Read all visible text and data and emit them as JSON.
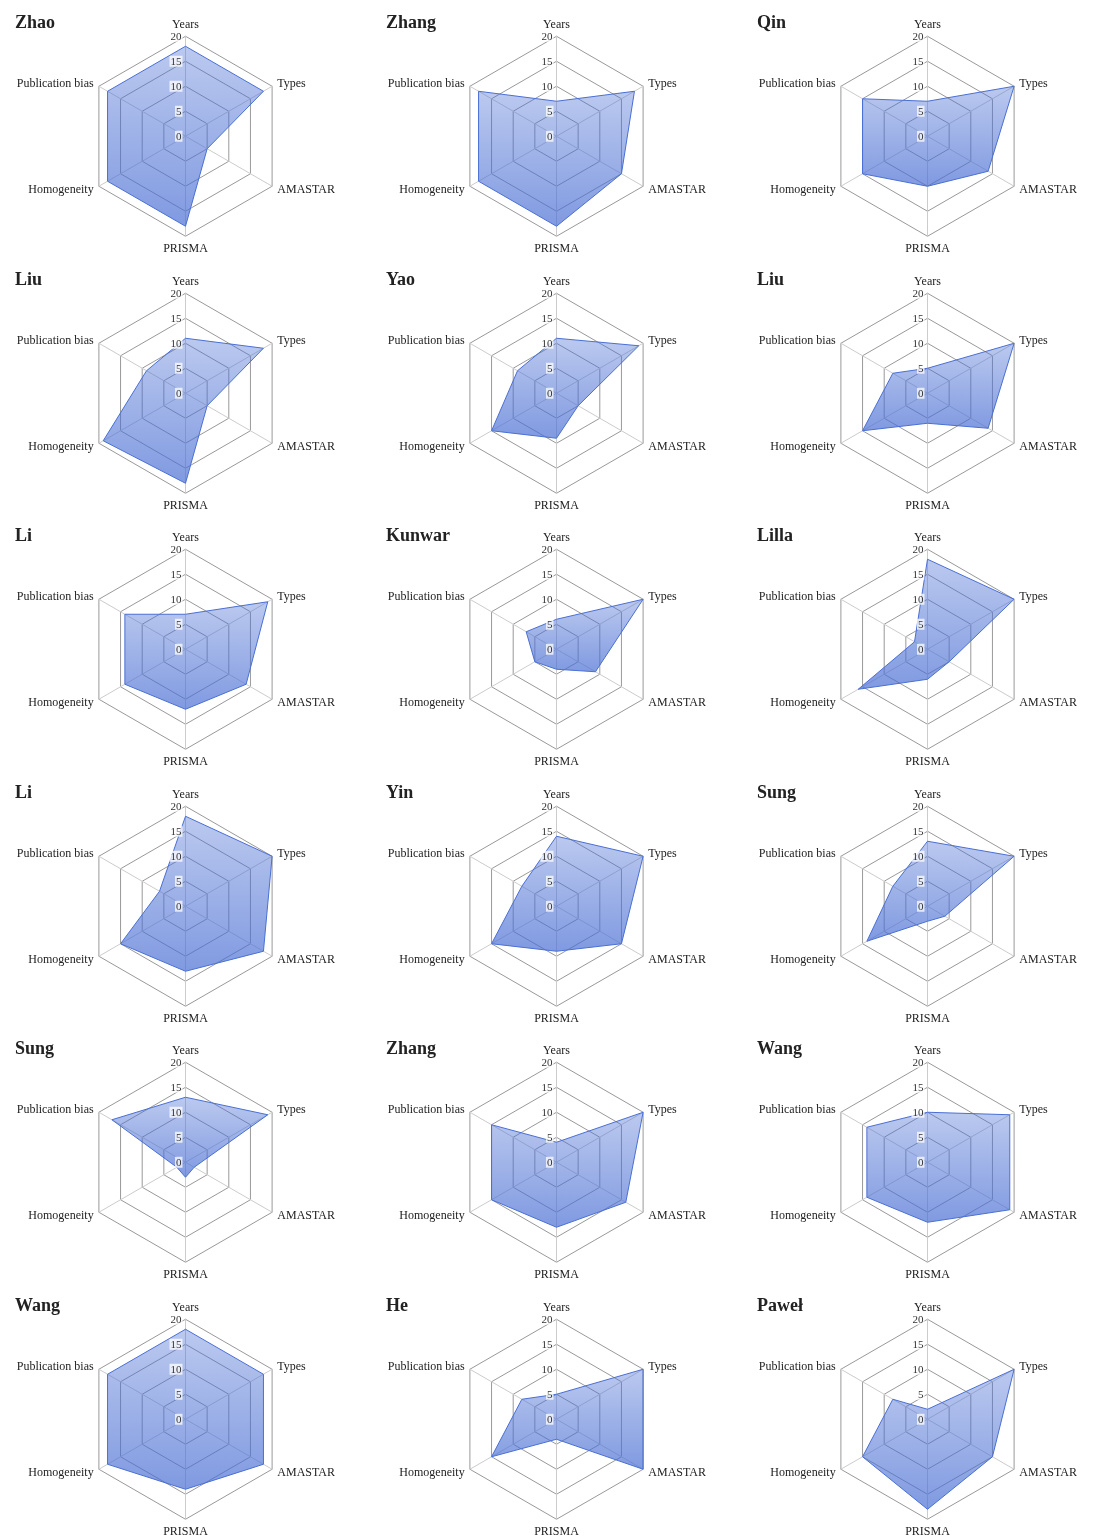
{
  "chart_data": [
    {
      "type": "radar",
      "title": "Zhao",
      "categories": [
        "Years",
        "Types",
        "AMASTAR",
        "PRISMA",
        "Homogeneity",
        "Publication bias"
      ],
      "series": [
        {
          "color": "#4a6fd4",
          "values": [
            18,
            18,
            5,
            18,
            18,
            18
          ]
        }
      ],
      "ylim": [
        0,
        20
      ],
      "yticks": [
        0,
        5,
        10,
        15,
        20
      ],
      "grid": true
    },
    {
      "type": "radar",
      "title": "Zhang",
      "categories": [
        "Years",
        "Types",
        "AMASTAR",
        "PRISMA",
        "Homogeneity",
        "Publication bias"
      ],
      "series": [
        {
          "color": "#4a6fd4",
          "values": [
            7,
            18,
            15,
            18,
            18,
            18
          ]
        }
      ],
      "ylim": [
        0,
        20
      ],
      "yticks": [
        0,
        5,
        10,
        15,
        20
      ],
      "grid": true
    },
    {
      "type": "radar",
      "title": "Qin",
      "categories": [
        "Years",
        "Types",
        "AMASTAR",
        "PRISMA",
        "Homogeneity",
        "Publication bias"
      ],
      "series": [
        {
          "color": "#4a6fd4",
          "values": [
            7,
            20,
            14,
            10,
            15,
            15
          ]
        }
      ],
      "ylim": [
        0,
        20
      ],
      "yticks": [
        0,
        5,
        10,
        15,
        20
      ],
      "grid": true
    },
    {
      "type": "radar",
      "title": "Liu",
      "categories": [
        "Years",
        "Types",
        "AMASTAR",
        "PRISMA",
        "Homogeneity",
        "Publication bias"
      ],
      "series": [
        {
          "color": "#4a6fd4",
          "values": [
            11,
            18,
            5,
            18,
            19,
            9
          ]
        }
      ],
      "ylim": [
        0,
        20
      ],
      "yticks": [
        0,
        5,
        10,
        15,
        20
      ],
      "grid": true
    },
    {
      "type": "radar",
      "title": "Yao",
      "categories": [
        "Years",
        "Types",
        "AMASTAR",
        "PRISMA",
        "Homogeneity",
        "Publication bias"
      ],
      "series": [
        {
          "color": "#4a6fd4",
          "values": [
            11,
            19,
            5,
            9,
            15,
            9
          ]
        }
      ],
      "ylim": [
        0,
        20
      ],
      "yticks": [
        0,
        5,
        10,
        15,
        20
      ],
      "grid": true
    },
    {
      "type": "radar",
      "title": "Liu",
      "categories": [
        "Years",
        "Types",
        "AMASTAR",
        "PRISMA",
        "Homogeneity",
        "Publication bias"
      ],
      "series": [
        {
          "color": "#4a6fd4",
          "values": [
            5,
            20,
            14,
            6,
            15,
            8
          ]
        }
      ],
      "ylim": [
        0,
        20
      ],
      "yticks": [
        0,
        5,
        10,
        15,
        20
      ],
      "grid": true
    },
    {
      "type": "radar",
      "title": "Li",
      "categories": [
        "Years",
        "Types",
        "AMASTAR",
        "PRISMA",
        "Homogeneity",
        "Publication bias"
      ],
      "series": [
        {
          "color": "#4a6fd4",
          "values": [
            7,
            19,
            14,
            12,
            14,
            14
          ]
        }
      ],
      "ylim": [
        0,
        20
      ],
      "yticks": [
        0,
        5,
        10,
        15,
        20
      ],
      "grid": true
    },
    {
      "type": "radar",
      "title": "Kunwar",
      "categories": [
        "Years",
        "Types",
        "AMASTAR",
        "PRISMA",
        "Homogeneity",
        "Publication bias"
      ],
      "series": [
        {
          "color": "#4a6fd4",
          "values": [
            6,
            20,
            9,
            4,
            5,
            7
          ]
        }
      ],
      "ylim": [
        0,
        20
      ],
      "yticks": [
        0,
        5,
        10,
        15,
        20
      ],
      "grid": true
    },
    {
      "type": "radar",
      "title": "Lilla",
      "categories": [
        "Years",
        "Types",
        "AMASTAR",
        "PRISMA",
        "Homogeneity",
        "Publication bias"
      ],
      "series": [
        {
          "color": "#4a6fd4",
          "values": [
            18,
            20,
            5,
            6,
            16,
            3
          ]
        }
      ],
      "ylim": [
        0,
        20
      ],
      "yticks": [
        0,
        5,
        10,
        15,
        20
      ],
      "grid": true
    },
    {
      "type": "radar",
      "title": "Li",
      "categories": [
        "Years",
        "Types",
        "AMASTAR",
        "PRISMA",
        "Homogeneity",
        "Publication bias"
      ],
      "series": [
        {
          "color": "#4a6fd4",
          "values": [
            18,
            20,
            18,
            13,
            15,
            6
          ]
        }
      ],
      "ylim": [
        0,
        20
      ],
      "yticks": [
        0,
        5,
        10,
        15,
        20
      ],
      "grid": true
    },
    {
      "type": "radar",
      "title": "Yin",
      "categories": [
        "Years",
        "Types",
        "AMASTAR",
        "PRISMA",
        "Homogeneity",
        "Publication bias"
      ],
      "series": [
        {
          "color": "#4a6fd4",
          "values": [
            14,
            20,
            15,
            9,
            15,
            8
          ]
        }
      ],
      "ylim": [
        0,
        20
      ],
      "yticks": [
        0,
        5,
        10,
        15,
        20
      ],
      "grid": true
    },
    {
      "type": "radar",
      "title": "Sung",
      "categories": [
        "Years",
        "Types",
        "AMASTAR",
        "PRISMA",
        "Homogeneity",
        "Publication bias"
      ],
      "series": [
        {
          "color": "#4a6fd4",
          "values": [
            13,
            20,
            4,
            3,
            14,
            8
          ]
        }
      ],
      "ylim": [
        0,
        20
      ],
      "yticks": [
        0,
        5,
        10,
        15,
        20
      ],
      "grid": true
    },
    {
      "type": "radar",
      "title": "Sung",
      "categories": [
        "Years",
        "Types",
        "AMASTAR",
        "PRISMA",
        "Homogeneity",
        "Publication bias"
      ],
      "series": [
        {
          "color": "#4a6fd4",
          "values": [
            13,
            19,
            2,
            3,
            2,
            17
          ]
        }
      ],
      "ylim": [
        0,
        20
      ],
      "yticks": [
        0,
        5,
        10,
        15,
        20
      ],
      "grid": true
    },
    {
      "type": "radar",
      "title": "Zhang",
      "categories": [
        "Years",
        "Types",
        "AMASTAR",
        "PRISMA",
        "Homogeneity",
        "Publication bias"
      ],
      "series": [
        {
          "color": "#4a6fd4",
          "values": [
            4,
            20,
            16,
            13,
            15,
            15
          ]
        }
      ],
      "ylim": [
        0,
        20
      ],
      "yticks": [
        0,
        5,
        10,
        15,
        20
      ],
      "grid": true
    },
    {
      "type": "radar",
      "title": "Wang",
      "categories": [
        "Years",
        "Types",
        "AMASTAR",
        "PRISMA",
        "Homogeneity",
        "Publication bias"
      ],
      "series": [
        {
          "color": "#4a6fd4",
          "values": [
            10,
            19,
            19,
            12,
            14,
            14
          ]
        }
      ],
      "ylim": [
        0,
        20
      ],
      "yticks": [
        0,
        5,
        10,
        15,
        20
      ],
      "grid": true
    },
    {
      "type": "radar",
      "title": "Wang",
      "categories": [
        "Years",
        "Types",
        "AMASTAR",
        "PRISMA",
        "Homogeneity",
        "Publication bias"
      ],
      "series": [
        {
          "color": "#4a6fd4",
          "values": [
            18,
            18,
            18,
            14,
            18,
            18
          ]
        }
      ],
      "ylim": [
        0,
        20
      ],
      "yticks": [
        0,
        5,
        10,
        15,
        20
      ],
      "grid": true
    },
    {
      "type": "radar",
      "title": "He",
      "categories": [
        "Years",
        "Types",
        "AMASTAR",
        "PRISMA",
        "Homogeneity",
        "Publication bias"
      ],
      "series": [
        {
          "color": "#4a6fd4",
          "values": [
            5,
            20,
            20,
            4,
            15,
            8
          ]
        }
      ],
      "ylim": [
        0,
        20
      ],
      "yticks": [
        0,
        5,
        10,
        15,
        20
      ],
      "grid": true
    },
    {
      "type": "radar",
      "title": "Paweł",
      "categories": [
        "Years",
        "Types",
        "AMASTAR",
        "PRISMA",
        "Homogeneity",
        "Publication bias"
      ],
      "series": [
        {
          "color": "#4a6fd4",
          "values": [
            2,
            20,
            15,
            18,
            15,
            8
          ]
        }
      ],
      "ylim": [
        0,
        20
      ],
      "yticks": [
        0,
        5,
        10,
        15,
        20
      ],
      "grid": true
    }
  ]
}
